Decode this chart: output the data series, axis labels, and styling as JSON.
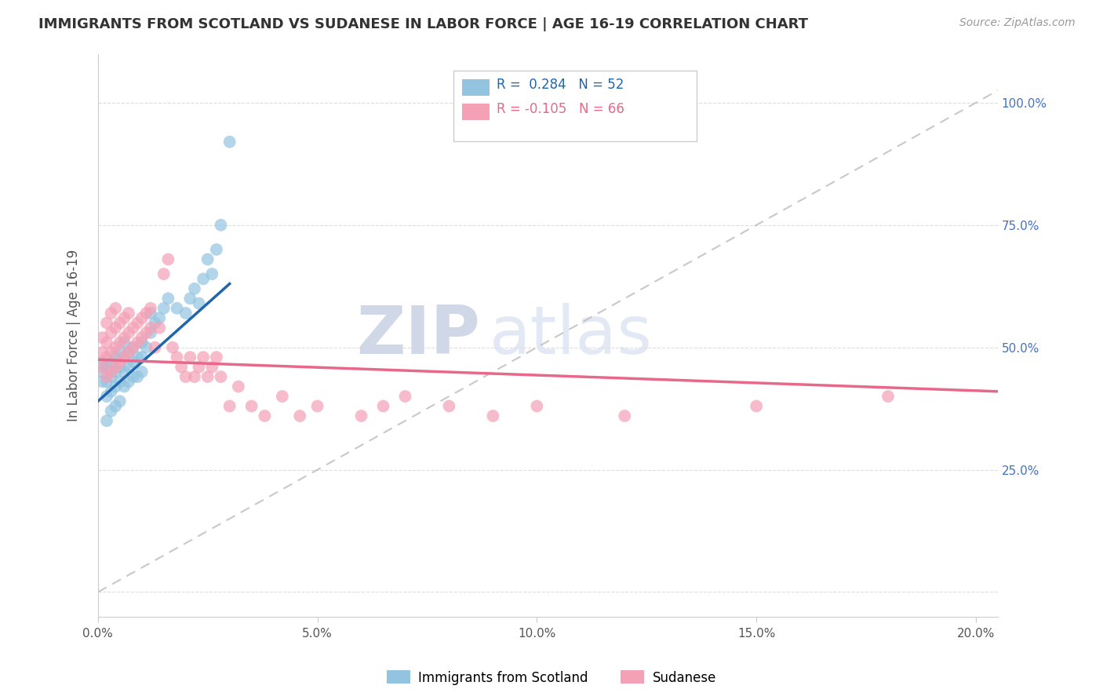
{
  "title": "IMMIGRANTS FROM SCOTLAND VS SUDANESE IN LABOR FORCE | AGE 16-19 CORRELATION CHART",
  "source": "Source: ZipAtlas.com",
  "ylabel": "In Labor Force | Age 16-19",
  "xlim": [
    0.0,
    0.205
  ],
  "ylim": [
    -0.05,
    1.1
  ],
  "xtick_vals": [
    0.0,
    0.05,
    0.1,
    0.15,
    0.2
  ],
  "xtick_labels": [
    "0.0%",
    "5.0%",
    "10.0%",
    "15.0%",
    "20.0%"
  ],
  "ytick_vals": [
    0.0,
    0.25,
    0.5,
    0.75,
    1.0
  ],
  "ytick_right_labels": [
    "",
    "25.0%",
    "50.0%",
    "75.0%",
    "100.0%"
  ],
  "blue_scatter_color": "#92c4e0",
  "pink_scatter_color": "#f4a0b5",
  "blue_line_color": "#2166ac",
  "pink_line_color": "#e8688a",
  "dashed_line_color": "#bbbbbb",
  "r_blue": 0.284,
  "n_blue": 52,
  "r_pink": -0.105,
  "n_pink": 66,
  "legend_r_blue_text": "R =  0.284   N = 52",
  "legend_r_pink_text": "R = -0.105   N = 66",
  "scotland_x": [
    0.001,
    0.001,
    0.001,
    0.002,
    0.002,
    0.002,
    0.002,
    0.003,
    0.003,
    0.003,
    0.003,
    0.004,
    0.004,
    0.004,
    0.004,
    0.005,
    0.005,
    0.005,
    0.005,
    0.006,
    0.006,
    0.006,
    0.006,
    0.007,
    0.007,
    0.007,
    0.008,
    0.008,
    0.008,
    0.009,
    0.009,
    0.01,
    0.01,
    0.01,
    0.011,
    0.012,
    0.012,
    0.013,
    0.014,
    0.015,
    0.016,
    0.018,
    0.02,
    0.021,
    0.022,
    0.023,
    0.024,
    0.025,
    0.026,
    0.027,
    0.028,
    0.03
  ],
  "scotland_y": [
    0.43,
    0.45,
    0.47,
    0.35,
    0.4,
    0.43,
    0.46,
    0.37,
    0.41,
    0.44,
    0.47,
    0.38,
    0.42,
    0.45,
    0.48,
    0.39,
    0.43,
    0.46,
    0.49,
    0.42,
    0.45,
    0.48,
    0.51,
    0.43,
    0.46,
    0.49,
    0.44,
    0.47,
    0.5,
    0.44,
    0.48,
    0.45,
    0.48,
    0.51,
    0.5,
    0.53,
    0.57,
    0.55,
    0.56,
    0.58,
    0.6,
    0.58,
    0.57,
    0.6,
    0.62,
    0.59,
    0.64,
    0.68,
    0.65,
    0.7,
    0.75,
    0.92
  ],
  "sudanese_x": [
    0.001,
    0.001,
    0.001,
    0.002,
    0.002,
    0.002,
    0.002,
    0.003,
    0.003,
    0.003,
    0.003,
    0.004,
    0.004,
    0.004,
    0.004,
    0.005,
    0.005,
    0.005,
    0.006,
    0.006,
    0.006,
    0.007,
    0.007,
    0.007,
    0.008,
    0.008,
    0.009,
    0.009,
    0.01,
    0.01,
    0.011,
    0.011,
    0.012,
    0.012,
    0.013,
    0.014,
    0.015,
    0.016,
    0.017,
    0.018,
    0.019,
    0.02,
    0.021,
    0.022,
    0.023,
    0.024,
    0.025,
    0.026,
    0.027,
    0.028,
    0.03,
    0.032,
    0.035,
    0.038,
    0.042,
    0.046,
    0.05,
    0.06,
    0.065,
    0.07,
    0.08,
    0.09,
    0.1,
    0.12,
    0.15,
    0.18
  ],
  "sudanese_y": [
    0.46,
    0.49,
    0.52,
    0.44,
    0.48,
    0.51,
    0.55,
    0.45,
    0.49,
    0.53,
    0.57,
    0.46,
    0.5,
    0.54,
    0.58,
    0.47,
    0.51,
    0.55,
    0.48,
    0.52,
    0.56,
    0.49,
    0.53,
    0.57,
    0.5,
    0.54,
    0.51,
    0.55,
    0.52,
    0.56,
    0.53,
    0.57,
    0.54,
    0.58,
    0.5,
    0.54,
    0.65,
    0.68,
    0.5,
    0.48,
    0.46,
    0.44,
    0.48,
    0.44,
    0.46,
    0.48,
    0.44,
    0.46,
    0.48,
    0.44,
    0.38,
    0.42,
    0.38,
    0.36,
    0.4,
    0.36,
    0.38,
    0.36,
    0.38,
    0.4,
    0.38,
    0.36,
    0.38,
    0.36,
    0.38,
    0.4
  ],
  "blue_regline_x": [
    0.0,
    0.03
  ],
  "blue_regline_y": [
    0.39,
    0.63
  ],
  "pink_regline_x": [
    0.0,
    0.205
  ],
  "pink_regline_y": [
    0.475,
    0.41
  ]
}
